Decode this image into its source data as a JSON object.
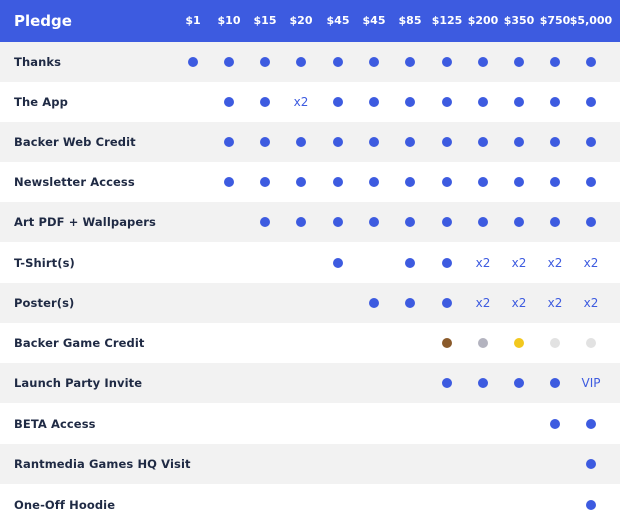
{
  "header": {
    "title": "Pledge",
    "tiers": [
      "$1",
      "$10",
      "$15",
      "$20",
      "$45",
      "$45",
      "$85",
      "$125",
      "$200",
      "$350",
      "$750",
      "$5,000"
    ]
  },
  "colors": {
    "accent": "#3d5be0",
    "bronze": "#8a5a2b",
    "silver": "#b3b3bf",
    "gold": "#f2c81e",
    "platinum": "#e2e2e2"
  },
  "rows": [
    {
      "label": "Thanks",
      "cells": [
        "dot",
        "dot",
        "dot",
        "dot",
        "dot",
        "dot",
        "dot",
        "dot",
        "dot",
        "dot",
        "dot",
        "dot"
      ]
    },
    {
      "label": "The App",
      "cells": [
        "",
        "dot",
        "dot",
        "x2",
        "dot",
        "dot",
        "dot",
        "dot",
        "dot",
        "dot",
        "dot",
        "dot"
      ]
    },
    {
      "label": "Backer Web Credit",
      "cells": [
        "",
        "dot",
        "dot",
        "dot",
        "dot",
        "dot",
        "dot",
        "dot",
        "dot",
        "dot",
        "dot",
        "dot"
      ]
    },
    {
      "label": "Newsletter Access",
      "cells": [
        "",
        "dot",
        "dot",
        "dot",
        "dot",
        "dot",
        "dot",
        "dot",
        "dot",
        "dot",
        "dot",
        "dot"
      ]
    },
    {
      "label": "Art PDF + Wallpapers",
      "cells": [
        "",
        "",
        "dot",
        "dot",
        "dot",
        "dot",
        "dot",
        "dot",
        "dot",
        "dot",
        "dot",
        "dot"
      ]
    },
    {
      "label": "T-Shirt(s)",
      "cells": [
        "",
        "",
        "",
        "",
        "dot",
        "",
        "dot",
        "dot",
        "x2",
        "x2",
        "x2",
        "x2"
      ]
    },
    {
      "label": "Poster(s)",
      "cells": [
        "",
        "",
        "",
        "",
        "",
        "dot",
        "dot",
        "dot",
        "x2",
        "x2",
        "x2",
        "x2"
      ]
    },
    {
      "label": "Backer Game Credit",
      "cells": [
        "",
        "",
        "",
        "",
        "",
        "",
        "",
        "dot:bronze",
        "dot:silver",
        "dot:gold",
        "dot:platinum",
        "dot:platinum"
      ]
    },
    {
      "label": "Launch Party Invite",
      "cells": [
        "",
        "",
        "",
        "",
        "",
        "",
        "",
        "dot",
        "dot",
        "dot",
        "dot",
        "VIP"
      ]
    },
    {
      "label": "BETA Access",
      "cells": [
        "",
        "",
        "",
        "",
        "",
        "",
        "",
        "",
        "",
        "",
        "dot",
        "dot"
      ]
    },
    {
      "label": "Rantmedia Games HQ Visit",
      "cells": [
        "",
        "",
        "",
        "",
        "",
        "",
        "",
        "",
        "",
        "",
        "",
        "dot"
      ]
    },
    {
      "label": "One-Off Hoodie",
      "cells": [
        "",
        "",
        "",
        "",
        "",
        "",
        "",
        "",
        "",
        "",
        "",
        "dot"
      ]
    }
  ]
}
